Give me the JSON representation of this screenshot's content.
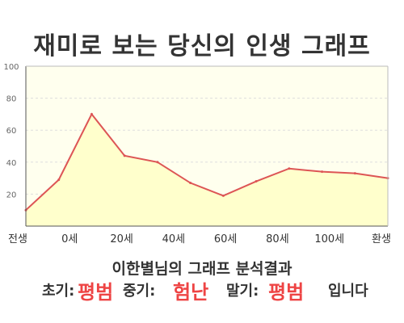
{
  "title": "재미로 보는 당신의 인생 그래프",
  "chart_data": {
    "type": "area",
    "title": "재미로 보는 당신의 인생 그래프",
    "x_tick_labels": [
      "전생",
      "0세",
      "20세",
      "40세",
      "60세",
      "80세",
      "100세",
      "환생"
    ],
    "y_ticks": [
      20,
      40,
      60,
      80,
      100
    ],
    "ylim": [
      0,
      100
    ],
    "grid": true,
    "series": [
      {
        "values": [
          10,
          29,
          70,
          44,
          40,
          27,
          19,
          28,
          36,
          34,
          33,
          30
        ]
      }
    ],
    "fill_color": "#ffffcc",
    "line_color": "#dd5555"
  },
  "summary": {
    "heading": "이한별님의 그래프 분석결과",
    "early_label": "초기:",
    "early_value": "평범",
    "middle_label": "중기:",
    "middle_value": "험난",
    "late_label": "말기:",
    "late_value": "평범",
    "suffix": "입니다"
  }
}
